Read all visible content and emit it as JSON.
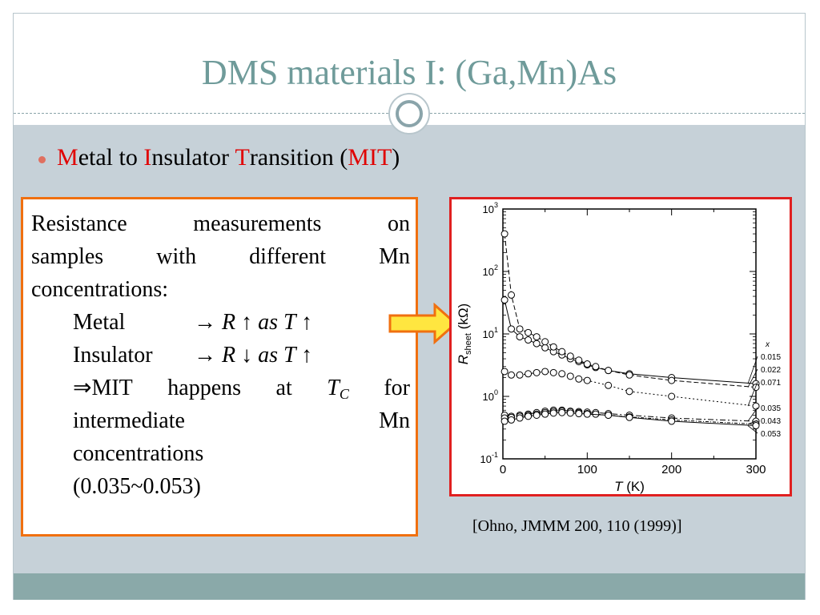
{
  "slide": {
    "title": "DMS materials I: (Ga,Mn)As",
    "bullet": {
      "parts": [
        "M",
        "etal to ",
        "I",
        "nsulator ",
        "T",
        "ransition (",
        "MIT",
        ")"
      ]
    },
    "textbox": {
      "para_lines": [
        "Resistance measurements on",
        "samples with different Mn",
        "concentrations:"
      ],
      "metal_label": "Metal",
      "metal_rel": "→ R ↑ as T ↑",
      "insulator_label": "Insulator",
      "insulator_rel": "→ R ↓ as T ↑",
      "mit_words": [
        "⇒MIT",
        "happens",
        "at"
      ],
      "mit_tc": "T",
      "mit_tc_sub": "C",
      "mit_for": "for",
      "intermediate_words": [
        "intermediate",
        "Mn"
      ],
      "conc_line": "concentrations",
      "range_line": "(0.035~0.053)"
    },
    "citation": "[Ohno, JMMM 200, 110 (1999)]",
    "colors": {
      "title": "#6f9b9a",
      "accent_red": "#e00000",
      "textbox_border": "#f07010",
      "plot_border": "#e02020",
      "arrow_fill": "#ffe640",
      "content_bg": "#c6d1d8"
    }
  },
  "chart_data": {
    "type": "scatter",
    "xlabel": "T (K)",
    "ylabel": "R_sheet (kΩ)",
    "x_ticks": [
      "0",
      "100",
      "200",
      "300"
    ],
    "y_ticks": [
      "10^-1",
      "10^0",
      "10^1",
      "10^2",
      "10^3"
    ],
    "xlim": [
      0,
      300
    ],
    "ylim": [
      0.1,
      1000
    ],
    "y_scale": "log",
    "legend_title": "x",
    "series": [
      {
        "name": "0.015",
        "style": "solid",
        "x": [
          2,
          10,
          20,
          30,
          40,
          50,
          60,
          70,
          80,
          90,
          100,
          110,
          125,
          150,
          200,
          300
        ],
        "y": [
          35,
          12,
          9,
          8,
          7,
          6,
          5.2,
          4.6,
          4,
          3.6,
          3.2,
          2.9,
          2.6,
          2.3,
          2.0,
          1.6
        ]
      },
      {
        "name": "0.022",
        "style": "dashed",
        "x": [
          2,
          10,
          20,
          30,
          40,
          50,
          60,
          70,
          80,
          90,
          100,
          110,
          125,
          150,
          200,
          300
        ],
        "y": [
          400,
          42,
          12,
          10.5,
          9,
          7.5,
          6.2,
          5.2,
          4.4,
          3.8,
          3.3,
          3.0,
          2.6,
          2.2,
          1.8,
          1.4
        ]
      },
      {
        "name": "0.071",
        "style": "dotted",
        "x": [
          2,
          10,
          20,
          30,
          40,
          50,
          60,
          70,
          80,
          90,
          100,
          125,
          150,
          200,
          300
        ],
        "y": [
          2.5,
          2.2,
          2.2,
          2.3,
          2.4,
          2.5,
          2.4,
          2.3,
          2.1,
          1.9,
          1.8,
          1.5,
          1.2,
          1.0,
          0.7
        ]
      },
      {
        "name": "0.035",
        "style": "dashdot",
        "x": [
          2,
          10,
          20,
          30,
          40,
          50,
          60,
          70,
          80,
          90,
          100,
          110,
          125,
          150,
          200,
          300
        ],
        "y": [
          0.5,
          0.48,
          0.5,
          0.52,
          0.55,
          0.58,
          0.6,
          0.6,
          0.58,
          0.57,
          0.56,
          0.55,
          0.53,
          0.5,
          0.45,
          0.4
        ]
      },
      {
        "name": "0.043",
        "style": "dashdot2",
        "x": [
          2,
          10,
          20,
          30,
          40,
          50,
          60,
          70,
          80,
          90,
          100,
          110,
          125,
          150,
          200,
          300
        ],
        "y": [
          0.45,
          0.46,
          0.48,
          0.5,
          0.52,
          0.55,
          0.57,
          0.58,
          0.57,
          0.55,
          0.53,
          0.52,
          0.5,
          0.47,
          0.42,
          0.36
        ]
      },
      {
        "name": "0.053",
        "style": "solid-thin",
        "x": [
          2,
          10,
          20,
          30,
          40,
          50,
          60,
          70,
          80,
          90,
          100,
          125,
          150,
          200,
          300
        ],
        "y": [
          0.4,
          0.42,
          0.45,
          0.48,
          0.5,
          0.52,
          0.54,
          0.55,
          0.54,
          0.53,
          0.52,
          0.5,
          0.46,
          0.4,
          0.34
        ]
      }
    ]
  }
}
